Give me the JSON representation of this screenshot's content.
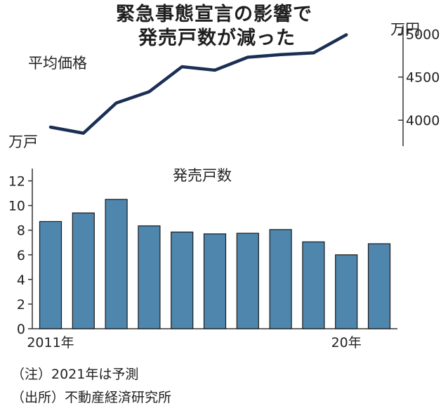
{
  "title": {
    "line1": "緊急事態宣言の影響で",
    "line2": "発売戸数が減った"
  },
  "line_chart_labels": {
    "series_label": "平均価格",
    "left_unit": "万戸",
    "right_unit": "万円"
  },
  "bar_chart_labels": {
    "series_label": "発売戸数"
  },
  "notes": {
    "note": "（注）2021年は予測",
    "source": "（出所）不動産経済研究所"
  },
  "colors": {
    "line": "#1b2f55",
    "bar": "#4e86ad",
    "bar_stroke": "#1a1a1a",
    "axis": "#333333"
  },
  "chart_data": [
    {
      "type": "line",
      "title": "",
      "series": [
        {
          "name": "平均価格",
          "values": [
            3920,
            3850,
            4200,
            4330,
            4620,
            4580,
            4730,
            4760,
            4780,
            4990
          ]
        }
      ],
      "y_ticks": [
        4000,
        4500,
        5000
      ],
      "y_tick_labels": [
        "4000",
        "4500",
        "5000"
      ],
      "ylim": [
        3700,
        5100
      ],
      "ylabel": "万円",
      "grid": false
    },
    {
      "type": "bar",
      "title": "",
      "categories": [
        "2011",
        "2012",
        "2013",
        "2014",
        "2015",
        "2016",
        "2017",
        "2018",
        "2019",
        "2020",
        "2021"
      ],
      "x_tick_labels": [
        {
          "index": 0,
          "label": "2011年"
        },
        {
          "index": 9,
          "label": "20年"
        }
      ],
      "series": [
        {
          "name": "発売戸数",
          "values": [
            8.7,
            9.4,
            10.5,
            8.35,
            7.85,
            7.7,
            7.75,
            8.05,
            7.05,
            6.0,
            6.9
          ]
        }
      ],
      "y_ticks": [
        0,
        2,
        4,
        6,
        8,
        10,
        12
      ],
      "y_tick_labels": [
        "0",
        "2",
        "4",
        "6",
        "8",
        "10",
        "12"
      ],
      "ylim": [
        0,
        13
      ],
      "ylabel": "万戸",
      "grid": false
    }
  ]
}
